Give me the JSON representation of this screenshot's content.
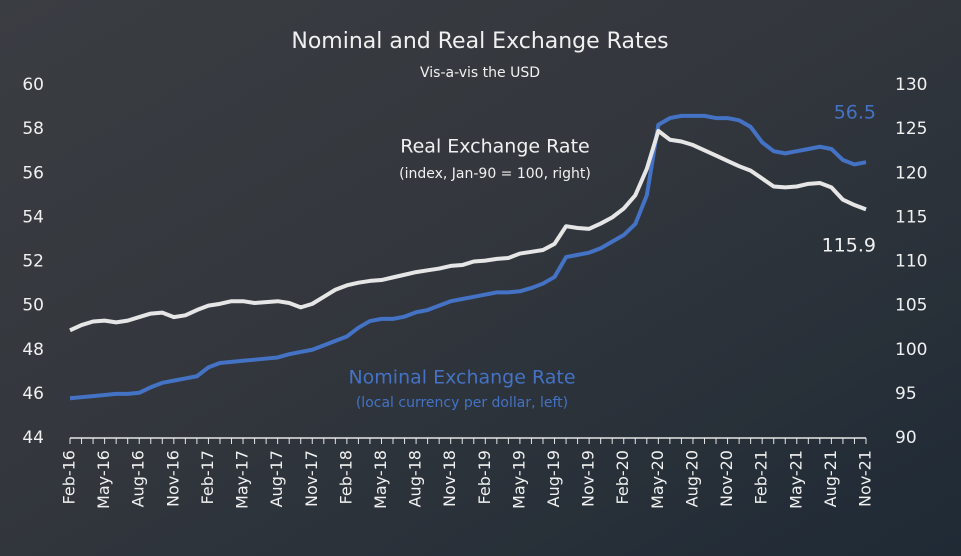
{
  "chart_data": {
    "type": "line",
    "title": "Nominal and Real Exchange Rates",
    "subtitle": "Vis-a-vis the USD",
    "categories": [
      "Feb-16",
      null,
      null,
      "May-16",
      null,
      null,
      "Aug-16",
      null,
      null,
      "Nov-16",
      null,
      null,
      "Feb-17",
      null,
      null,
      "May-17",
      null,
      null,
      "Aug-17",
      null,
      null,
      "Nov-17",
      null,
      null,
      "Feb-18",
      null,
      null,
      "May-18",
      null,
      null,
      "Aug-18",
      null,
      null,
      "Nov-18",
      null,
      null,
      "Feb-19",
      null,
      null,
      "May-19",
      null,
      null,
      "Aug-19",
      null,
      null,
      "Nov-19",
      null,
      null,
      "Feb-20",
      null,
      null,
      "May-20",
      null,
      null,
      "Aug-20",
      null,
      null,
      "Nov-20",
      null,
      null,
      "Feb-21",
      null,
      null,
      "May-21",
      null,
      null,
      "Aug-21",
      null,
      null,
      "Nov-21"
    ],
    "series": [
      {
        "name": "Nominal Exchange Rate",
        "note": "(local currency per dollar, left)",
        "color": "#4472c4",
        "axis": "y",
        "values": [
          45.8,
          45.85,
          45.9,
          45.95,
          46.0,
          46.0,
          46.05,
          46.3,
          46.5,
          46.6,
          46.7,
          46.8,
          47.2,
          47.4,
          47.45,
          47.5,
          47.55,
          47.6,
          47.65,
          47.8,
          47.9,
          48.0,
          48.2,
          48.4,
          48.6,
          49.0,
          49.3,
          49.4,
          49.4,
          49.5,
          49.7,
          49.8,
          50.0,
          50.2,
          50.3,
          50.4,
          50.5,
          50.6,
          50.6,
          50.65,
          50.8,
          51.0,
          51.3,
          52.2,
          52.3,
          52.4,
          52.6,
          52.9,
          53.2,
          53.7,
          55.0,
          58.2,
          58.5,
          58.6,
          58.6,
          58.6,
          58.5,
          58.5,
          58.4,
          58.1,
          57.4,
          57.0,
          56.9,
          57.0,
          57.1,
          57.2,
          57.1,
          56.6,
          56.4,
          56.5
        ]
      },
      {
        "name": "Real Exchange Rate",
        "note": "(index, Jan-90 = 100, right)",
        "color": "#e6e6e6",
        "axis": "y2",
        "values": [
          102.2,
          102.8,
          103.2,
          103.3,
          103.1,
          103.3,
          103.7,
          104.1,
          104.2,
          103.7,
          103.9,
          104.5,
          105.0,
          105.2,
          105.5,
          105.5,
          105.3,
          105.4,
          105.5,
          105.3,
          104.8,
          105.2,
          106.0,
          106.8,
          107.3,
          107.6,
          107.8,
          107.9,
          108.2,
          108.5,
          108.8,
          109.0,
          109.2,
          109.5,
          109.6,
          110.0,
          110.1,
          110.3,
          110.4,
          110.9,
          111.1,
          111.3,
          112.0,
          114.0,
          113.8,
          113.7,
          114.3,
          115.0,
          116.0,
          117.5,
          120.5,
          124.8,
          123.8,
          123.6,
          123.2,
          122.6,
          122.0,
          121.4,
          120.8,
          120.3,
          119.4,
          118.5,
          118.4,
          118.5,
          118.8,
          118.9,
          118.4,
          117.0,
          116.4,
          115.9
        ]
      }
    ],
    "ylim": [
      44,
      60
    ],
    "yticks": [
      44,
      46,
      48,
      50,
      52,
      54,
      56,
      58,
      60
    ],
    "y2lim": [
      90,
      130
    ],
    "y2ticks": [
      90,
      95,
      100,
      105,
      110,
      115,
      120,
      125,
      130
    ]
  }
}
